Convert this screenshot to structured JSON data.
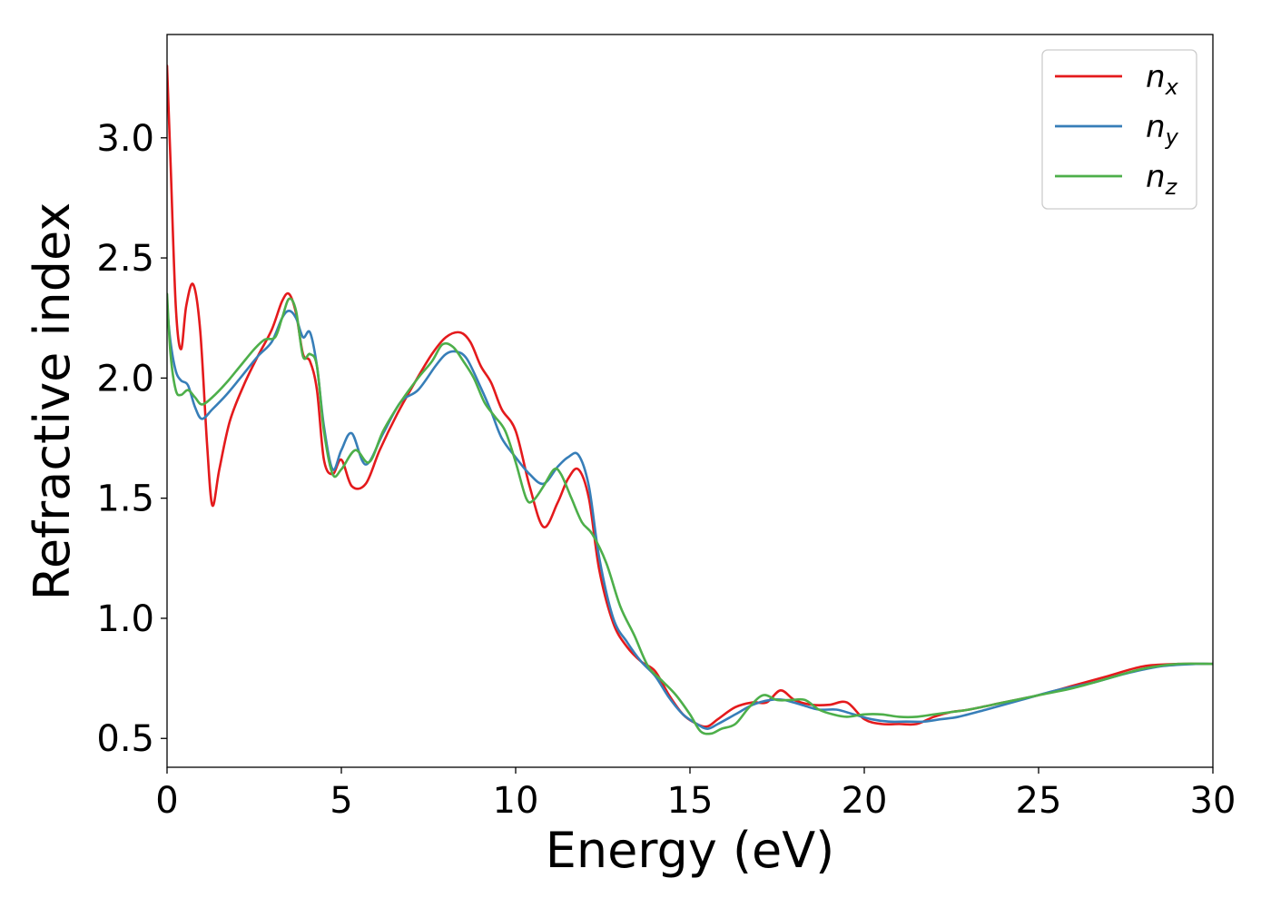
{
  "chart_data": {
    "type": "line",
    "xlabel": "Energy (eV)",
    "ylabel": "Refractive index",
    "xlim": [
      0,
      30
    ],
    "ylim": [
      0.38,
      3.43
    ],
    "xticks": [
      0,
      5,
      10,
      15,
      20,
      25,
      30
    ],
    "xtick_labels": [
      "0",
      "5",
      "10",
      "15",
      "20",
      "25",
      "30"
    ],
    "yticks": [
      0.5,
      1.0,
      1.5,
      2.0,
      2.5,
      3.0
    ],
    "ytick_labels": [
      "0.5",
      "1.0",
      "1.5",
      "2.0",
      "2.5",
      "3.0"
    ],
    "grid": false,
    "legend_position": "top-right",
    "series": [
      {
        "name": "n",
        "subscript": "x",
        "color": "#e41a1c",
        "x": [
          0,
          0.1,
          0.25,
          0.4,
          0.55,
          0.75,
          0.95,
          1.15,
          1.3,
          1.5,
          1.8,
          2.2,
          2.6,
          3.0,
          3.3,
          3.5,
          3.7,
          3.9,
          4.1,
          4.3,
          4.5,
          4.75,
          5.0,
          5.3,
          5.7,
          6.1,
          6.6,
          7.1,
          7.6,
          8.0,
          8.4,
          8.7,
          9.0,
          9.3,
          9.6,
          10.0,
          10.4,
          10.8,
          11.2,
          11.5,
          11.8,
          12.1,
          12.4,
          12.8,
          13.2,
          13.6,
          14.0,
          14.4,
          14.8,
          15.2,
          15.5,
          15.8,
          16.3,
          16.8,
          17.2,
          17.6,
          18.0,
          18.5,
          19.0,
          19.5,
          20.0,
          20.5,
          21.0,
          21.5,
          22.0,
          22.5,
          23.0,
          24.0,
          25.0,
          26.0,
          27.0,
          28.0,
          29.0,
          30.0
        ],
        "values": [
          3.3,
          2.9,
          2.3,
          2.12,
          2.3,
          2.39,
          2.2,
          1.72,
          1.47,
          1.62,
          1.82,
          1.97,
          2.09,
          2.2,
          2.32,
          2.35,
          2.27,
          2.1,
          2.07,
          1.95,
          1.66,
          1.6,
          1.66,
          1.55,
          1.56,
          1.7,
          1.85,
          1.98,
          2.1,
          2.17,
          2.19,
          2.15,
          2.05,
          1.98,
          1.87,
          1.78,
          1.55,
          1.38,
          1.48,
          1.58,
          1.62,
          1.5,
          1.2,
          0.98,
          0.88,
          0.82,
          0.78,
          0.68,
          0.6,
          0.56,
          0.55,
          0.58,
          0.63,
          0.65,
          0.65,
          0.7,
          0.66,
          0.64,
          0.64,
          0.65,
          0.58,
          0.56,
          0.56,
          0.56,
          0.59,
          0.61,
          0.62,
          0.65,
          0.68,
          0.72,
          0.76,
          0.8,
          0.81,
          0.81
        ]
      },
      {
        "name": "n",
        "subscript": "y",
        "color": "#377eb8",
        "x": [
          0,
          0.1,
          0.25,
          0.4,
          0.6,
          0.8,
          1.0,
          1.3,
          1.7,
          2.1,
          2.6,
          3.0,
          3.3,
          3.5,
          3.7,
          3.9,
          4.1,
          4.3,
          4.5,
          4.75,
          5.0,
          5.3,
          5.7,
          6.2,
          6.7,
          7.2,
          7.7,
          8.0,
          8.3,
          8.6,
          9.0,
          9.3,
          9.6,
          10.0,
          10.4,
          10.8,
          11.2,
          11.5,
          11.8,
          12.1,
          12.4,
          12.8,
          13.2,
          13.6,
          14.0,
          14.4,
          14.8,
          15.2,
          15.5,
          15.8,
          16.3,
          16.8,
          17.3,
          17.7,
          18.2,
          18.7,
          19.2,
          19.7,
          20.2,
          20.7,
          21.2,
          21.7,
          22.2,
          22.7,
          23.5,
          24.5,
          25.5,
          26.5,
          27.5,
          28.5,
          29.5,
          30.0
        ],
        "values": [
          2.3,
          2.15,
          2.03,
          1.99,
          1.97,
          1.88,
          1.83,
          1.87,
          1.93,
          2.0,
          2.09,
          2.15,
          2.25,
          2.28,
          2.25,
          2.17,
          2.19,
          2.05,
          1.8,
          1.62,
          1.7,
          1.77,
          1.64,
          1.77,
          1.9,
          1.95,
          2.05,
          2.1,
          2.11,
          2.08,
          1.96,
          1.86,
          1.75,
          1.67,
          1.6,
          1.56,
          1.63,
          1.67,
          1.68,
          1.55,
          1.25,
          1.0,
          0.9,
          0.82,
          0.76,
          0.67,
          0.6,
          0.56,
          0.54,
          0.56,
          0.6,
          0.64,
          0.66,
          0.66,
          0.64,
          0.62,
          0.62,
          0.6,
          0.58,
          0.57,
          0.57,
          0.57,
          0.58,
          0.59,
          0.62,
          0.66,
          0.7,
          0.73,
          0.77,
          0.8,
          0.81,
          0.81
        ]
      },
      {
        "name": "n",
        "subscript": "z",
        "color": "#4daf4a",
        "x": [
          0,
          0.1,
          0.25,
          0.4,
          0.6,
          0.8,
          1.0,
          1.3,
          1.7,
          2.1,
          2.5,
          2.8,
          3.1,
          3.3,
          3.5,
          3.7,
          3.9,
          4.1,
          4.3,
          4.5,
          4.75,
          5.0,
          5.4,
          5.8,
          6.2,
          6.7,
          7.2,
          7.6,
          7.9,
          8.2,
          8.5,
          8.8,
          9.1,
          9.4,
          9.7,
          10.0,
          10.3,
          10.5,
          10.8,
          11.1,
          11.3,
          11.6,
          11.9,
          12.2,
          12.6,
          13.0,
          13.4,
          13.8,
          14.2,
          14.6,
          15.0,
          15.3,
          15.6,
          15.9,
          16.3,
          16.7,
          17.1,
          17.5,
          17.9,
          18.3,
          18.7,
          19.1,
          19.5,
          20.0,
          20.5,
          21.0,
          21.5,
          22.0,
          22.5,
          23.0,
          24.0,
          25.0,
          26.0,
          27.0,
          28.0,
          29.0,
          30.0
        ],
        "values": [
          2.35,
          2.1,
          1.95,
          1.93,
          1.95,
          1.92,
          1.89,
          1.92,
          1.98,
          2.05,
          2.12,
          2.16,
          2.17,
          2.25,
          2.33,
          2.28,
          2.09,
          2.1,
          2.05,
          1.78,
          1.6,
          1.62,
          1.7,
          1.65,
          1.78,
          1.9,
          2.0,
          2.07,
          2.14,
          2.13,
          2.07,
          2.0,
          1.9,
          1.84,
          1.78,
          1.65,
          1.5,
          1.49,
          1.55,
          1.62,
          1.6,
          1.5,
          1.4,
          1.35,
          1.23,
          1.05,
          0.93,
          0.8,
          0.74,
          0.68,
          0.6,
          0.53,
          0.52,
          0.54,
          0.56,
          0.63,
          0.68,
          0.66,
          0.66,
          0.66,
          0.62,
          0.6,
          0.59,
          0.6,
          0.6,
          0.59,
          0.59,
          0.6,
          0.61,
          0.62,
          0.65,
          0.68,
          0.71,
          0.75,
          0.79,
          0.81,
          0.81
        ]
      }
    ]
  }
}
